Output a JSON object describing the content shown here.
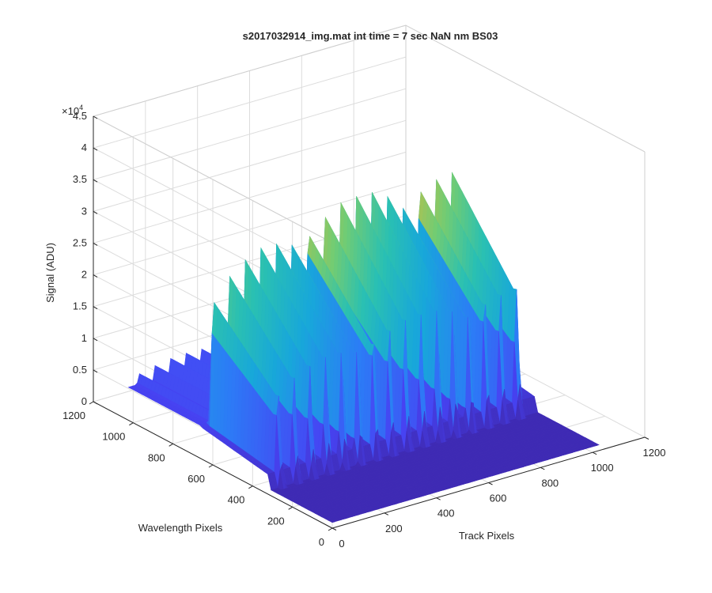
{
  "chart_data": {
    "type": "surface",
    "title": "s2017032914_img.mat int time = 7 sec  NaN nm BS03",
    "xlabel": "Track Pixels",
    "ylabel": "Wavelength Pixels",
    "zlabel": "Signal (ADU)",
    "z_exponent_label": "×10",
    "z_exponent_power": "4",
    "xlim": [
      0,
      1200
    ],
    "ylim": [
      0,
      1200
    ],
    "zlim": [
      0,
      45000
    ],
    "x_ticks": [
      "0",
      "200",
      "400",
      "600",
      "800",
      "1000",
      "1200"
    ],
    "y_ticks": [
      "0",
      "200",
      "400",
      "600",
      "800",
      "1000",
      "1200"
    ],
    "z_ticks": [
      "0",
      "0.5",
      "1",
      "1.5",
      "2",
      "2.5",
      "3",
      "3.5",
      "4",
      "4.5"
    ],
    "grid": true,
    "colormap": [
      "#3e26a8",
      "#4743f3",
      "#2c7cf6",
      "#18a7da",
      "#2ac0b2",
      "#72cc73",
      "#c6bd45",
      "#f9d630"
    ],
    "surface": {
      "x_extent": [
        0,
        1024
      ],
      "y_extent": [
        0,
        1024
      ],
      "tracks": {
        "count": 16,
        "x_start": 40,
        "x_step": 61,
        "y_range": [
          660,
          1024
        ],
        "peak_values": [
          7200,
          7500,
          7800,
          8000,
          8200,
          8400,
          8600,
          8700,
          8800,
          9000,
          9100,
          9200,
          9300,
          9300,
          9400,
          9500
        ]
      },
      "step_band": {
        "y_range": [
          300,
          660
        ],
        "peak_values": [
          26000,
          28500,
          30000,
          31500,
          32500,
          33500,
          34000,
          34500,
          35000,
          35000,
          35500,
          35500,
          35000,
          35500,
          35000,
          34500
        ]
      },
      "background": 900
    }
  }
}
